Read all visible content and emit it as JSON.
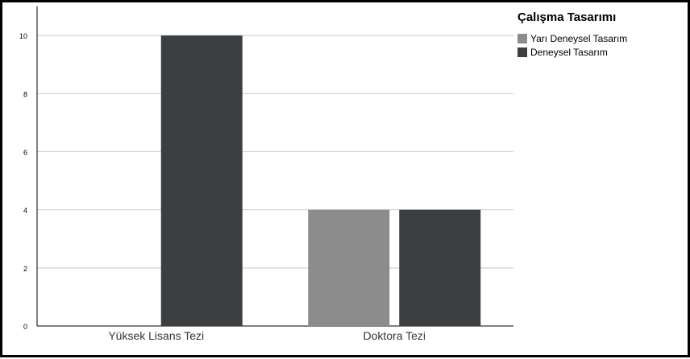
{
  "chart_data": {
    "type": "bar",
    "categories": [
      "Yüksek Lisans Tezi",
      "Doktora Tezi"
    ],
    "series": [
      {
        "name": "Yarı Deneysel Tasarım",
        "values": [
          0,
          4
        ],
        "color": "#8c8c8c"
      },
      {
        "name": "Deneysel Tasarım",
        "values": [
          10,
          4
        ],
        "color": "#3b3f42"
      }
    ],
    "yticks": [
      0,
      2,
      4,
      6,
      8,
      10
    ],
    "ylim": [
      0,
      11
    ],
    "grid": true,
    "legend": {
      "title": "Çalışma Tasarımı",
      "placement": "top-right"
    }
  }
}
